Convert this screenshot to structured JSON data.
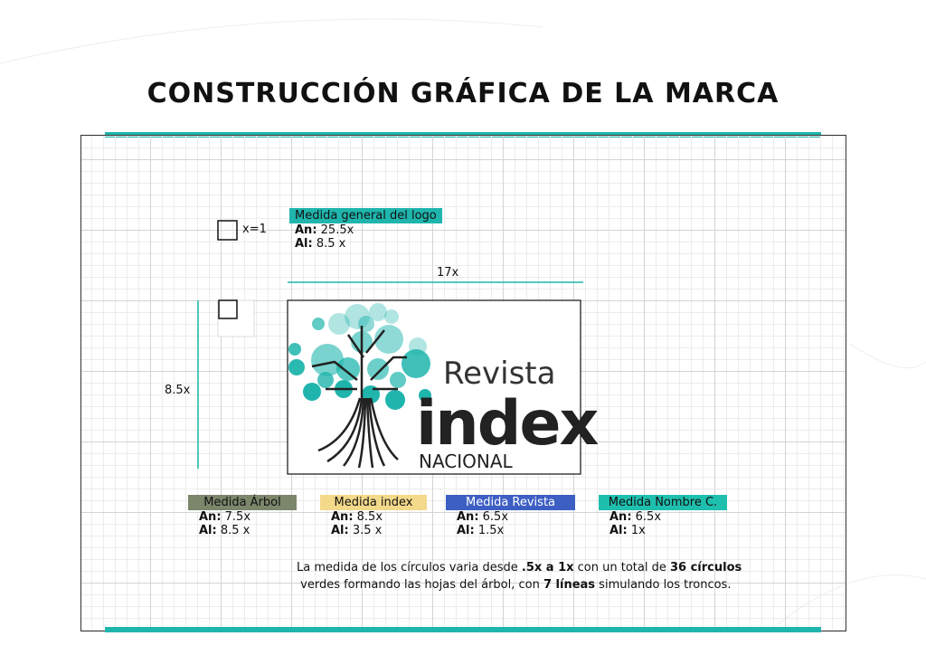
{
  "header": {
    "title": "CONSTRUCCIÓN GRÁFICA DE LA MARCA"
  },
  "unit": {
    "label": "x=1"
  },
  "general": {
    "title": "Medida general del logo",
    "width_label": "An:",
    "width": "25.5x",
    "height_label": "Al:",
    "height": "8.5 x"
  },
  "dimensions": {
    "width": "17x",
    "height": "8.5x"
  },
  "logo": {
    "line1": "Revista",
    "line2": "index",
    "line3": "NACIONAL"
  },
  "measures": [
    {
      "title": "Medida Árbol",
      "width_label": "An:",
      "width": "7.5x",
      "height_label": "Al:",
      "height": "8.5 x"
    },
    {
      "title": "Medida index",
      "width_label": "An:",
      "width": "8.5x",
      "height_label": "Al:",
      "height": "3.5 x"
    },
    {
      "title": "Medida Revista",
      "width_label": "An:",
      "width": "6.5x",
      "height_label": "Al:",
      "height": "1.5x"
    },
    {
      "title": "Medida Nombre C.",
      "width_label": "An:",
      "width": "6.5x",
      "height_label": "Al:",
      "height": "1x"
    }
  ],
  "note": {
    "parts": [
      "La medida de los círculos varia desde ",
      ".5x a 1x",
      " con un total de ",
      "36 círculos",
      " verdes formando las hojas del árbol, con ",
      "7 líneas",
      " simulando los troncos."
    ]
  }
}
